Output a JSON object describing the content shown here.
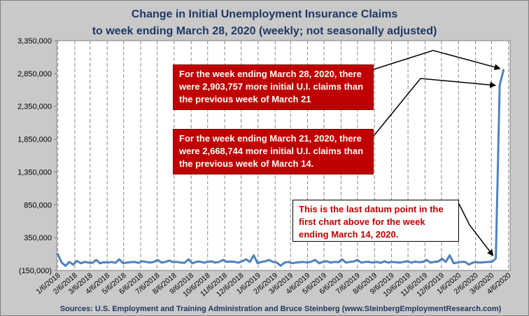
{
  "title_line1": "Change in Initial Unemployment Insurance Claims",
  "title_line2": "to week ending March 28, 2020 (weekly; not seasonally adjusted)",
  "source": "Sources: U.S. Employment and Training Administration  and  Bruce Steinberg  (www.SteinbergEmploymentResearch.com)",
  "annotations": [
    "For the week ending March 28, 2020,  there were  2,903,757 more initial U.I. claims than the previous week of March 21",
    "For the week ending March 21, 2020,  there were  2,668,744 more initial U.I. claims than the previous week of March 14.",
    "This is the last datum point in the first chart above for the week ending March 14, 2020."
  ],
  "colors": {
    "line": "#4f81bd",
    "callout_red": "#c00000",
    "title": "#1f3864",
    "plot_bg": "#ffffff",
    "frame_bg": "#c9c9c9"
  },
  "chart_data": {
    "type": "line",
    "title": "Change in Initial Unemployment Insurance Claims to week ending March 28, 2020 (weekly; not seasonally adjusted)",
    "xlabel": "",
    "ylabel": "",
    "ylim": [
      -150000,
      3350000
    ],
    "yticks": [
      -150000,
      350000,
      850000,
      1350000,
      1850000,
      2350000,
      2850000,
      3350000
    ],
    "ytick_labels": [
      "(150,000)",
      "350,000",
      "850,000",
      "1,350,000",
      "1,850,000",
      "2,350,000",
      "2,850,000",
      "3,350,000"
    ],
    "xtick_labels": [
      "1/6/2018",
      "2/6/2018",
      "3/6/2018",
      "4/6/2018",
      "5/6/2018",
      "6/6/2018",
      "7/6/2018",
      "8/6/2018",
      "9/6/2018",
      "10/6/2018",
      "11/6/2018",
      "12/6/2018",
      "1/6/2019",
      "2/6/2019",
      "3/6/2019",
      "4/6/2019",
      "5/6/2019",
      "6/6/2019",
      "7/6/2019",
      "8/6/2019",
      "9/6/2019",
      "10/6/2019",
      "11/6/2019",
      "12/6/2019",
      "1/6/2020",
      "2/6/2020",
      "3/6/2020",
      "4/6/2020"
    ],
    "grid": "vertical dashed",
    "series": [
      {
        "x": [
          "2018-01-06",
          "2018-01-13",
          "2018-01-20",
          "2018-01-27",
          "2018-02-03",
          "2018-02-10",
          "2018-02-17",
          "2018-02-24",
          "2018-03-03",
          "2018-03-10",
          "2018-03-17",
          "2018-03-24",
          "2018-03-31",
          "2018-04-07",
          "2018-04-14",
          "2018-04-21",
          "2018-04-28",
          "2018-05-05",
          "2018-05-12",
          "2018-05-19",
          "2018-05-26",
          "2018-06-02",
          "2018-06-09",
          "2018-06-16",
          "2018-06-23",
          "2018-06-30",
          "2018-07-07",
          "2018-07-14",
          "2018-07-21",
          "2018-07-28",
          "2018-08-04",
          "2018-08-11",
          "2018-08-18",
          "2018-08-25",
          "2018-09-01",
          "2018-09-08",
          "2018-09-15",
          "2018-09-22",
          "2018-09-29",
          "2018-10-06",
          "2018-10-13",
          "2018-10-20",
          "2018-10-27",
          "2018-11-03",
          "2018-11-10",
          "2018-11-17",
          "2018-11-24",
          "2018-12-01",
          "2018-12-08",
          "2018-12-15",
          "2018-12-22",
          "2018-12-29",
          "2019-01-05",
          "2019-01-12",
          "2019-01-19",
          "2019-01-26",
          "2019-02-02",
          "2019-02-09",
          "2019-02-16",
          "2019-02-23",
          "2019-03-02",
          "2019-03-09",
          "2019-03-16",
          "2019-03-23",
          "2019-03-30",
          "2019-04-06",
          "2019-04-13",
          "2019-04-20",
          "2019-04-27",
          "2019-05-04",
          "2019-05-11",
          "2019-05-18",
          "2019-05-25",
          "2019-06-01",
          "2019-06-08",
          "2019-06-15",
          "2019-06-22",
          "2019-06-29",
          "2019-07-06",
          "2019-07-13",
          "2019-07-20",
          "2019-07-27",
          "2019-08-03",
          "2019-08-10",
          "2019-08-17",
          "2019-08-24",
          "2019-08-31",
          "2019-09-07",
          "2019-09-14",
          "2019-09-21",
          "2019-09-28",
          "2019-10-05",
          "2019-10-12",
          "2019-10-19",
          "2019-10-26",
          "2019-11-02",
          "2019-11-09",
          "2019-11-16",
          "2019-11-23",
          "2019-11-30",
          "2019-12-07",
          "2019-12-14",
          "2019-12-21",
          "2019-12-28",
          "2020-01-04",
          "2020-01-11",
          "2020-01-18",
          "2020-01-25",
          "2020-02-01",
          "2020-02-08",
          "2020-02-15",
          "2020-02-22",
          "2020-02-29",
          "2020-03-07",
          "2020-03-14",
          "2020-03-21",
          "2020-03-28"
        ],
        "values": [
          100000,
          -30000,
          -80000,
          -20000,
          -60000,
          -5000,
          -40000,
          -20000,
          -30000,
          -35000,
          10000,
          -40000,
          -25000,
          -30000,
          -20000,
          -35000,
          20000,
          -40000,
          -30000,
          -25000,
          -20000,
          -35000,
          -10000,
          -20000,
          -30000,
          -20000,
          10000,
          -30000,
          -20000,
          0,
          -25000,
          -20000,
          -30000,
          -35000,
          20000,
          -40000,
          -20000,
          -15000,
          -30000,
          -20000,
          -10000,
          -30000,
          -20000,
          10000,
          -20000,
          -15000,
          -20000,
          -30000,
          -10000,
          20000,
          -20000,
          80000,
          -40000,
          -20000,
          -10000,
          10000,
          -20000,
          -30000,
          -80000,
          -30000,
          -20000,
          -40000,
          -30000,
          -25000,
          -20000,
          -30000,
          -15000,
          10000,
          -40000,
          -20000,
          -10000,
          -30000,
          -20000,
          -25000,
          20000,
          -30000,
          -20000,
          -15000,
          10000,
          -30000,
          -20000,
          -20000,
          -30000,
          -20000,
          -35000,
          -10000,
          -30000,
          -20000,
          -25000,
          -30000,
          -20000,
          -10000,
          -30000,
          -15000,
          -25000,
          -20000,
          10000,
          -30000,
          -20000,
          -15000,
          30000,
          -20000,
          80000,
          -40000,
          -30000,
          -20000,
          -20000,
          -60000,
          -30000,
          -25000,
          -30000,
          -25000,
          -20000,
          -20000,
          35000,
          2668744,
          2903757
        ]
      }
    ]
  }
}
